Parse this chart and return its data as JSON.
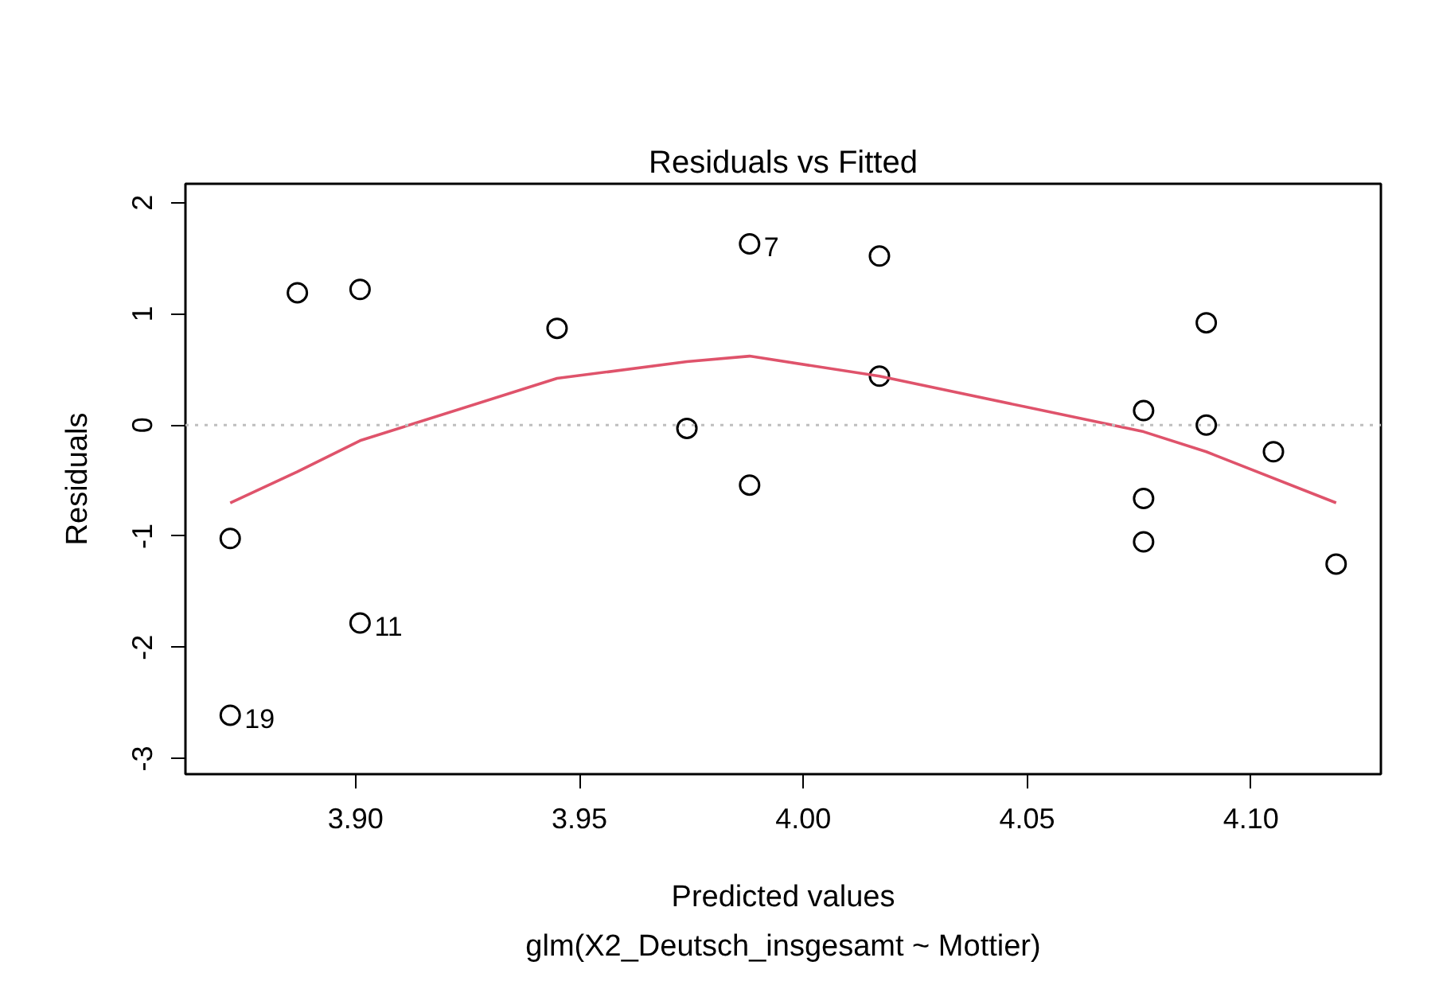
{
  "chart_data": {
    "type": "scatter",
    "title": "Residuals vs Fitted",
    "xlabel": "Predicted values",
    "ylabel": "Residuals",
    "annotations": [
      {
        "text": "7",
        "x": 3.988,
        "y": 1.63
      },
      {
        "text": "11",
        "x": 3.901,
        "y": -1.78
      },
      {
        "text": "19",
        "x": 3.872,
        "y": -2.61
      },
      "glm(X2_Deutsch_insgesamt ~ Mottier)"
    ],
    "series": [
      {
        "color": "#000000",
        "marker": "circle",
        "x": [
          3.872,
          3.872,
          3.887,
          3.901,
          3.901,
          3.945,
          3.974,
          3.988,
          3.988,
          4.017,
          4.017,
          4.076,
          4.076,
          4.076,
          4.09,
          4.09,
          4.105,
          4.119
        ],
        "values": [
          -1.02,
          -2.61,
          1.19,
          1.22,
          -1.78,
          0.87,
          -0.03,
          -0.54,
          1.63,
          1.52,
          0.44,
          0.13,
          -0.66,
          -1.05,
          0.92,
          0.0,
          -0.24,
          -1.25
        ]
      },
      {
        "type": "line",
        "color": "#df536b",
        "marker": "none",
        "x": [
          3.872,
          3.887,
          3.901,
          3.945,
          3.974,
          3.988,
          4.017,
          4.076,
          4.09,
          4.119
        ],
        "values": [
          -0.7,
          -0.42,
          -0.14,
          0.42,
          0.57,
          0.62,
          0.44,
          -0.06,
          -0.24,
          -0.7
        ]
      }
    ],
    "ref_lines": [
      {
        "axis": "y",
        "value": 0,
        "color": "#bebebe",
        "line_style": "dotted"
      }
    ],
    "xlim": [
      3.862,
      4.129
    ],
    "ylim": [
      -3.14,
      2.17
    ],
    "xticks": [
      {
        "value": 3.9,
        "label": "3.90"
      },
      {
        "value": 3.95,
        "label": "3.95"
      },
      {
        "value": 4.0,
        "label": "4.00"
      },
      {
        "value": 4.05,
        "label": "4.05"
      },
      {
        "value": 4.1,
        "label": "4.10"
      }
    ],
    "yticks": [
      -3,
      -2,
      -1,
      0,
      1,
      2
    ],
    "grid": false
  }
}
